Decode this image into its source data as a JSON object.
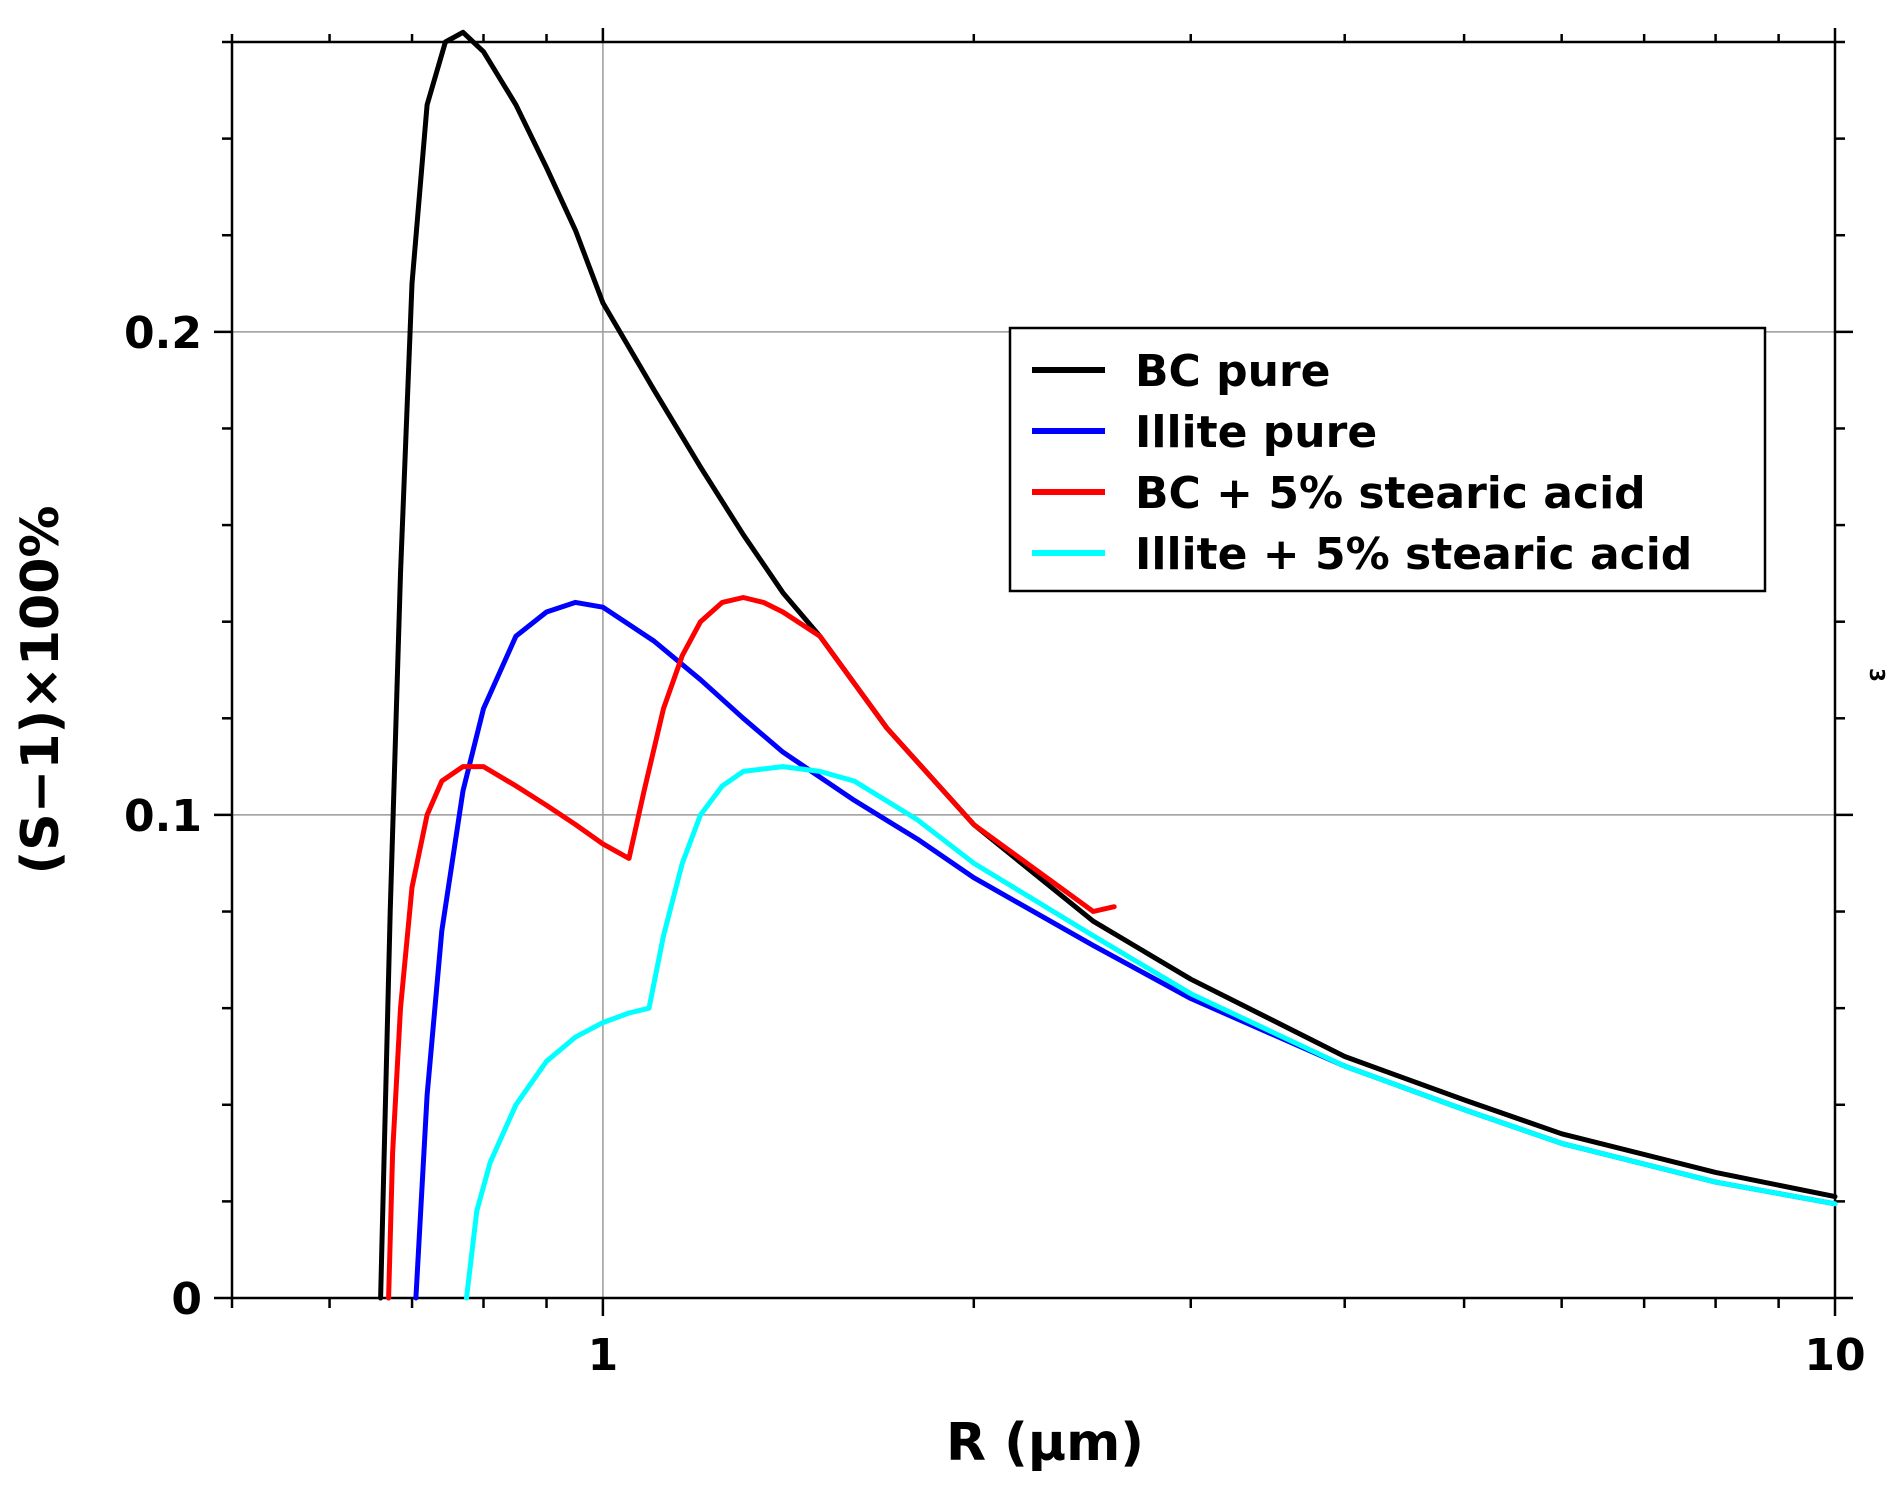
{
  "chart_data": {
    "type": "line",
    "xscale": "log",
    "xlabel": "R (μm)",
    "ylabel": "(S−1)×100%",
    "xlim": [
      0.5,
      10
    ],
    "ylim": [
      0,
      0.26
    ],
    "grid": true,
    "legend_position": "upper-right",
    "x_tick_labels": [
      "1",
      "10"
    ],
    "y_tick_labels": [
      "0",
      "0.1",
      "0.2"
    ],
    "side_mark": "3",
    "series": [
      {
        "name": "BC pure",
        "color": "#000000",
        "points": [
          [
            0.66,
            0
          ],
          [
            0.672,
            0.08
          ],
          [
            0.685,
            0.15
          ],
          [
            0.7,
            0.21
          ],
          [
            0.72,
            0.247
          ],
          [
            0.745,
            0.26
          ],
          [
            0.77,
            0.262
          ],
          [
            0.8,
            0.258
          ],
          [
            0.85,
            0.247
          ],
          [
            0.9,
            0.234
          ],
          [
            0.95,
            0.221
          ],
          [
            1.0,
            0.206
          ],
          [
            1.1,
            0.188
          ],
          [
            1.2,
            0.172
          ],
          [
            1.3,
            0.158
          ],
          [
            1.4,
            0.146
          ],
          [
            1.5,
            0.137
          ],
          [
            1.7,
            0.118
          ],
          [
            2.0,
            0.098
          ],
          [
            2.5,
            0.078
          ],
          [
            3.0,
            0.066
          ],
          [
            4.0,
            0.05
          ],
          [
            5.0,
            0.041
          ],
          [
            6.0,
            0.034
          ],
          [
            8.0,
            0.026
          ],
          [
            10.0,
            0.021
          ]
        ]
      },
      {
        "name": "Illite pure",
        "color": "#0000ff",
        "points": [
          [
            0.705,
            0
          ],
          [
            0.72,
            0.042
          ],
          [
            0.74,
            0.076
          ],
          [
            0.77,
            0.105
          ],
          [
            0.8,
            0.122
          ],
          [
            0.85,
            0.137
          ],
          [
            0.9,
            0.142
          ],
          [
            0.95,
            0.144
          ],
          [
            1.0,
            0.143
          ],
          [
            1.1,
            0.136
          ],
          [
            1.2,
            0.128
          ],
          [
            1.3,
            0.12
          ],
          [
            1.4,
            0.113
          ],
          [
            1.6,
            0.103
          ],
          [
            1.8,
            0.095
          ],
          [
            2.0,
            0.087
          ],
          [
            2.5,
            0.073
          ],
          [
            3.0,
            0.062
          ],
          [
            4.0,
            0.048
          ],
          [
            5.0,
            0.039
          ],
          [
            6.0,
            0.032
          ],
          [
            8.0,
            0.024
          ],
          [
            10.0,
            0.0195
          ]
        ]
      },
      {
        "name": "BC + 5% stearic acid",
        "color": "#ff0000",
        "points": [
          [
            0.67,
            0
          ],
          [
            0.675,
            0.03
          ],
          [
            0.685,
            0.06
          ],
          [
            0.7,
            0.085
          ],
          [
            0.72,
            0.1
          ],
          [
            0.74,
            0.107
          ],
          [
            0.77,
            0.11
          ],
          [
            0.8,
            0.11
          ],
          [
            0.85,
            0.106
          ],
          [
            0.9,
            0.102
          ],
          [
            0.95,
            0.098
          ],
          [
            1.0,
            0.094
          ],
          [
            1.05,
            0.091
          ],
          [
            1.08,
            0.105
          ],
          [
            1.12,
            0.122
          ],
          [
            1.16,
            0.133
          ],
          [
            1.2,
            0.14
          ],
          [
            1.25,
            0.144
          ],
          [
            1.3,
            0.145
          ],
          [
            1.35,
            0.144
          ],
          [
            1.4,
            0.142
          ],
          [
            1.5,
            0.137
          ],
          [
            1.7,
            0.118
          ],
          [
            2.0,
            0.098
          ],
          [
            2.5,
            0.08
          ],
          [
            2.6,
            0.081
          ]
        ]
      },
      {
        "name": "Illite + 5% stearic acid",
        "color": "#00ffff",
        "points": [
          [
            0.775,
            0
          ],
          [
            0.79,
            0.018
          ],
          [
            0.81,
            0.028
          ],
          [
            0.85,
            0.04
          ],
          [
            0.9,
            0.049
          ],
          [
            0.95,
            0.054
          ],
          [
            1.0,
            0.057
          ],
          [
            1.05,
            0.059
          ],
          [
            1.09,
            0.06
          ],
          [
            1.12,
            0.075
          ],
          [
            1.16,
            0.09
          ],
          [
            1.2,
            0.1
          ],
          [
            1.25,
            0.106
          ],
          [
            1.3,
            0.109
          ],
          [
            1.4,
            0.11
          ],
          [
            1.5,
            0.109
          ],
          [
            1.6,
            0.107
          ],
          [
            1.8,
            0.099
          ],
          [
            2.0,
            0.09
          ],
          [
            2.5,
            0.075
          ],
          [
            3.0,
            0.063
          ],
          [
            4.0,
            0.048
          ],
          [
            5.0,
            0.039
          ],
          [
            6.0,
            0.032
          ],
          [
            8.0,
            0.024
          ],
          [
            10.0,
            0.0195
          ]
        ]
      }
    ]
  }
}
